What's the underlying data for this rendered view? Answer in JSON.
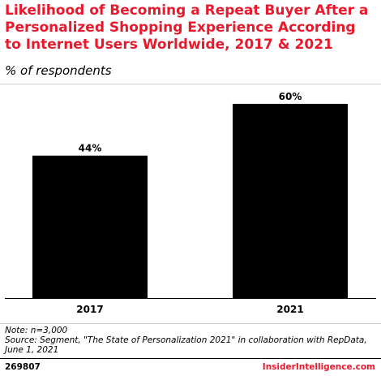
{
  "header": {
    "title": "Likelihood of Becoming a Repeat Buyer After a Personalized Shopping Experience According to Internet Users Worldwide, 2017 & 2021",
    "subtitle": "% of respondents"
  },
  "footer": {
    "note": "Note: n=3,000",
    "source": "Source: Segment, \"The State of Personalization 2021\" in collaboration with RepData, June 1, 2021",
    "chart_id": "269807",
    "brand": "InsiderIntelligence.com"
  },
  "colors": {
    "title": "#e8192c",
    "bar": "#000000",
    "brand": "#e8192c"
  },
  "chart_data": {
    "type": "bar",
    "categories": [
      "2017",
      "2021"
    ],
    "values": [
      44,
      60
    ],
    "value_labels": [
      "44%",
      "60%"
    ],
    "title": "Likelihood of Becoming a Repeat Buyer After a Personalized Shopping Experience According to Internet Users Worldwide, 2017 & 2021",
    "xlabel": "",
    "ylabel": "% of respondents",
    "ylim": [
      0,
      66
    ],
    "grid": false
  }
}
